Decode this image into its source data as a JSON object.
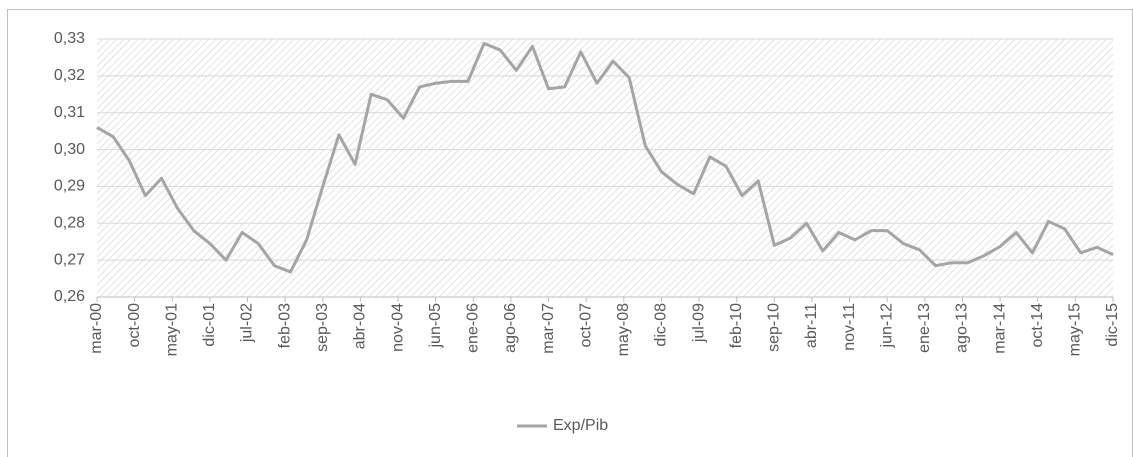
{
  "chart_data": {
    "type": "line",
    "x": [
      "2000-03",
      "2000-06",
      "2000-09",
      "2000-12",
      "2001-03",
      "2001-06",
      "2001-09",
      "2001-12",
      "2002-03",
      "2002-06",
      "2002-09",
      "2002-12",
      "2003-03",
      "2003-06",
      "2003-09",
      "2003-12",
      "2004-03",
      "2004-06",
      "2004-09",
      "2004-12",
      "2005-03",
      "2005-06",
      "2005-09",
      "2005-12",
      "2006-03",
      "2006-06",
      "2006-09",
      "2006-12",
      "2007-03",
      "2007-06",
      "2007-09",
      "2007-12",
      "2008-03",
      "2008-06",
      "2008-09",
      "2008-12",
      "2009-03",
      "2009-06",
      "2009-09",
      "2009-12",
      "2010-03",
      "2010-06",
      "2010-09",
      "2010-12",
      "2011-03",
      "2011-06",
      "2011-09",
      "2011-12",
      "2012-03",
      "2012-06",
      "2012-09",
      "2012-12",
      "2013-03",
      "2013-06",
      "2013-09",
      "2013-12",
      "2014-03",
      "2014-06",
      "2014-09",
      "2014-12",
      "2015-03",
      "2015-06",
      "2015-09",
      "2015-12"
    ],
    "series": [
      {
        "name": "Exp/Pib",
        "color": "#a5a5a5",
        "values": [
          0.306,
          0.3035,
          0.297,
          0.2875,
          0.2922,
          0.284,
          0.278,
          0.2745,
          0.27,
          0.2775,
          0.2745,
          0.2685,
          0.2668,
          0.2755,
          0.29,
          0.304,
          0.296,
          0.315,
          0.3135,
          0.3085,
          0.317,
          0.318,
          0.3185,
          0.3185,
          0.3288,
          0.327,
          0.3215,
          0.328,
          0.3165,
          0.317,
          0.3265,
          0.318,
          0.324,
          0.3195,
          0.301,
          0.294,
          0.2905,
          0.288,
          0.298,
          0.2955,
          0.2875,
          0.2915,
          0.274,
          0.276,
          0.28,
          0.2725,
          0.2775,
          0.2755,
          0.278,
          0.278,
          0.2745,
          0.2728,
          0.2685,
          0.2693,
          0.2693,
          0.2712,
          0.2737,
          0.2775,
          0.272,
          0.2805,
          0.2785,
          0.272,
          0.2735,
          0.2715
        ]
      }
    ],
    "xlim": [
      "2000-03",
      "2015-12"
    ],
    "xticks": [
      {
        "value": "2000-03",
        "label": "mar-00"
      },
      {
        "value": "2000-10",
        "label": "oct-00"
      },
      {
        "value": "2001-05",
        "label": "may-01"
      },
      {
        "value": "2001-12",
        "label": "dic-01"
      },
      {
        "value": "2002-07",
        "label": "jul-02"
      },
      {
        "value": "2003-02",
        "label": "feb-03"
      },
      {
        "value": "2003-09",
        "label": "sep-03"
      },
      {
        "value": "2004-04",
        "label": "abr-04"
      },
      {
        "value": "2004-11",
        "label": "nov-04"
      },
      {
        "value": "2005-06",
        "label": "jun-05"
      },
      {
        "value": "2006-01",
        "label": "ene-06"
      },
      {
        "value": "2006-08",
        "label": "ago-06"
      },
      {
        "value": "2007-03",
        "label": "mar-07"
      },
      {
        "value": "2007-10",
        "label": "oct-07"
      },
      {
        "value": "2008-05",
        "label": "may-08"
      },
      {
        "value": "2008-12",
        "label": "dic-08"
      },
      {
        "value": "2009-07",
        "label": "jul-09"
      },
      {
        "value": "2010-02",
        "label": "feb-10"
      },
      {
        "value": "2010-09",
        "label": "sep-10"
      },
      {
        "value": "2011-04",
        "label": "abr-11"
      },
      {
        "value": "2011-11",
        "label": "nov-11"
      },
      {
        "value": "2012-06",
        "label": "jun-12"
      },
      {
        "value": "2013-01",
        "label": "ene-13"
      },
      {
        "value": "2013-08",
        "label": "ago-13"
      },
      {
        "value": "2014-03",
        "label": "mar-14"
      },
      {
        "value": "2014-10",
        "label": "oct-14"
      },
      {
        "value": "2015-05",
        "label": "may-15"
      },
      {
        "value": "2015-12",
        "label": "dic-15"
      }
    ],
    "ylim": [
      0.26,
      0.33
    ],
    "yticks": [
      {
        "value": 0.26,
        "label": "0,26"
      },
      {
        "value": 0.27,
        "label": "0,27"
      },
      {
        "value": 0.28,
        "label": "0,28"
      },
      {
        "value": 0.29,
        "label": "0,29"
      },
      {
        "value": 0.3,
        "label": "0,30"
      },
      {
        "value": 0.31,
        "label": "0,31"
      },
      {
        "value": 0.32,
        "label": "0,32"
      },
      {
        "value": 0.33,
        "label": "0,33"
      }
    ],
    "grid": true,
    "legend": "bottom"
  }
}
